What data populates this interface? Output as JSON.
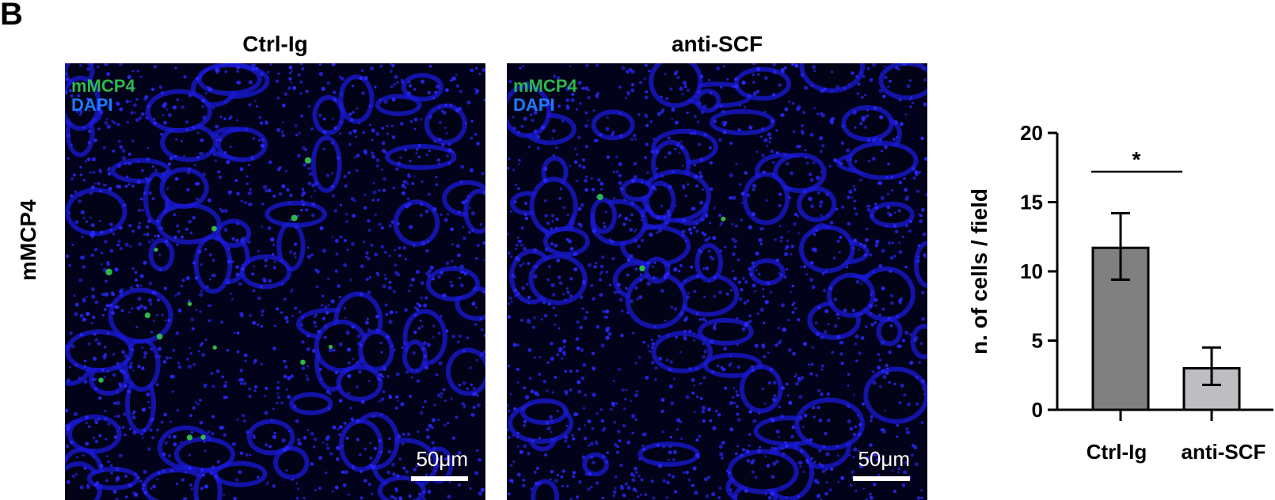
{
  "panel_letter": "B",
  "row_label": "mMCP4",
  "panels": [
    {
      "title": "Ctrl-Ig",
      "legend": [
        "mMCP4",
        "DAPI"
      ],
      "scale_bar": "50μm",
      "green_cells": 14
    },
    {
      "title": "anti-SCF",
      "legend": [
        "mMCP4",
        "DAPI"
      ],
      "scale_bar": "50μm",
      "green_cells": 3
    }
  ],
  "colors": {
    "mMCP4": "#2fb84a",
    "DAPI": "#1e3cff",
    "ctrl_bar": "#808080",
    "anti_bar": "#bdbdc2"
  },
  "chart_data": {
    "type": "bar",
    "categories": [
      "Ctrl-Ig",
      "anti-SCF"
    ],
    "values": [
      11.7,
      3.0
    ],
    "error_upper": [
      14.2,
      4.5
    ],
    "error_lower": [
      9.4,
      1.8
    ],
    "ylabel": "n. of cells / field",
    "ylim": [
      0,
      20
    ],
    "yticks": [
      "0",
      "5",
      "10",
      "15",
      "20"
    ],
    "significance": "*",
    "grid": false
  }
}
